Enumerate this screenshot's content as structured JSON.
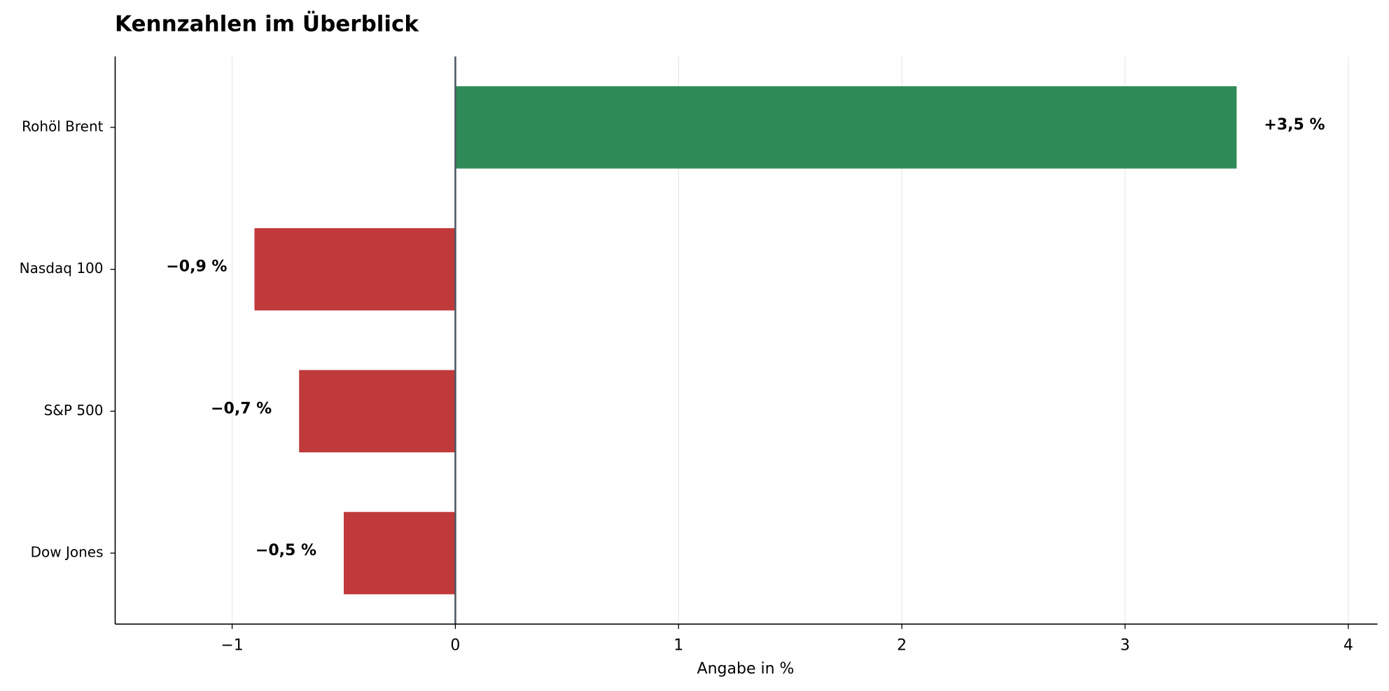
{
  "chart_data": {
    "type": "bar",
    "orientation": "horizontal",
    "title": "Kennzahlen im Überblick",
    "x_label": "Angabe in %",
    "categories": [
      "Rohöl Brent",
      "Nasdaq 100",
      "S&P 500",
      "Dow Jones"
    ],
    "values": [
      3.5,
      -0.9,
      -0.7,
      -0.5
    ],
    "value_labels": [
      "+3,5 %",
      "−0,9 %",
      "−0,7 %",
      "−0,5 %"
    ],
    "colors": [
      "#2e8b57",
      "#c0393b",
      "#c0393b",
      "#c0393b"
    ],
    "xlim": [
      -1.524,
      4.131
    ],
    "xticks": [
      {
        "value": -1,
        "label": "−1"
      },
      0,
      1,
      2,
      3,
      4
    ],
    "grid": true
  }
}
